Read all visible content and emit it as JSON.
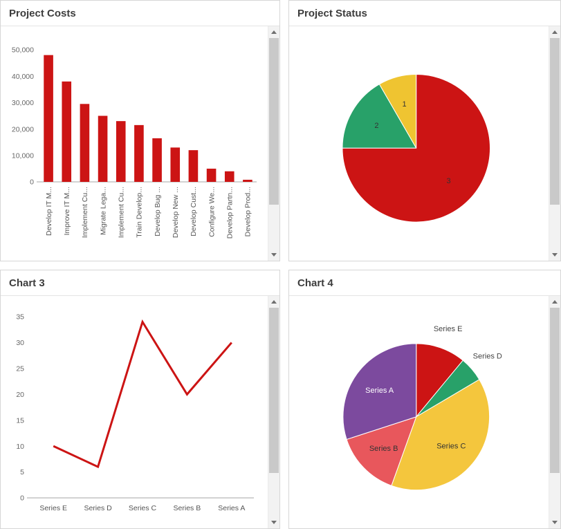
{
  "panels": [
    {
      "title": "Project Costs"
    },
    {
      "title": "Project Status"
    },
    {
      "title": "Chart 3"
    },
    {
      "title": "Chart 4"
    }
  ],
  "chart_data": [
    {
      "type": "bar",
      "title": "Project Costs",
      "categories": [
        "Develop IT M...",
        "Improve IT M...",
        "Implement Cu...",
        "Migrate Lega...",
        "Implement Cu...",
        "Train Develop...",
        "Develop Bug ...",
        "Develop New ...",
        "Develop Cust...",
        "Configure We...",
        "Develop Partn...",
        "Develop Prod..."
      ],
      "values": [
        48000,
        38000,
        29500,
        25000,
        23000,
        21500,
        16500,
        13000,
        12000,
        5000,
        4000,
        800
      ],
      "ylim": [
        0,
        50000
      ],
      "yticks": [
        0,
        10000,
        20000,
        30000,
        40000,
        50000
      ],
      "color": "#cc1414",
      "grid": false,
      "legend": "none",
      "xlabel": "",
      "ylabel": ""
    },
    {
      "type": "pie",
      "title": "Project Status",
      "direction": "counter-clockwise",
      "start": "top",
      "slices": [
        {
          "label": "1",
          "value": 1,
          "color": "#efc431",
          "label_inside": true,
          "label_color": "#333333"
        },
        {
          "label": "2",
          "value": 2,
          "color": "#28a169",
          "label_inside": true,
          "label_color": "#333333"
        },
        {
          "label": "3",
          "value": 9,
          "color": "#cc1414",
          "label_inside": true,
          "label_color": "#333333"
        }
      ]
    },
    {
      "type": "line",
      "title": "Chart 3",
      "categories": [
        "Series E",
        "Series D",
        "Series C",
        "Series B",
        "Series A"
      ],
      "values": [
        10,
        6,
        34,
        20,
        30
      ],
      "ylim": [
        0,
        35
      ],
      "yticks": [
        0,
        5,
        10,
        15,
        20,
        25,
        30,
        35
      ],
      "color": "#cc1414",
      "grid": false,
      "legend": "none",
      "xlabel": "",
      "ylabel": ""
    },
    {
      "type": "pie",
      "title": "Chart 4",
      "direction": "clockwise",
      "start": "top",
      "slices": [
        {
          "label": "Series E",
          "value": 11,
          "color": "#cc1414",
          "label_inside": false,
          "label_color": "#444444"
        },
        {
          "label": "Series D",
          "value": 5.5,
          "color": "#28a169",
          "label_inside": false,
          "label_color": "#444444"
        },
        {
          "label": "Series C",
          "value": 39,
          "color": "#f4c63d",
          "label_inside": true,
          "label_color": "#333333"
        },
        {
          "label": "Series B",
          "value": 14.5,
          "color": "#e8575c",
          "label_inside": true,
          "label_color": "#333333"
        },
        {
          "label": "Series A",
          "value": 30,
          "color": "#7c4a9e",
          "label_inside": true,
          "label_color": "#ffffff"
        }
      ]
    }
  ]
}
